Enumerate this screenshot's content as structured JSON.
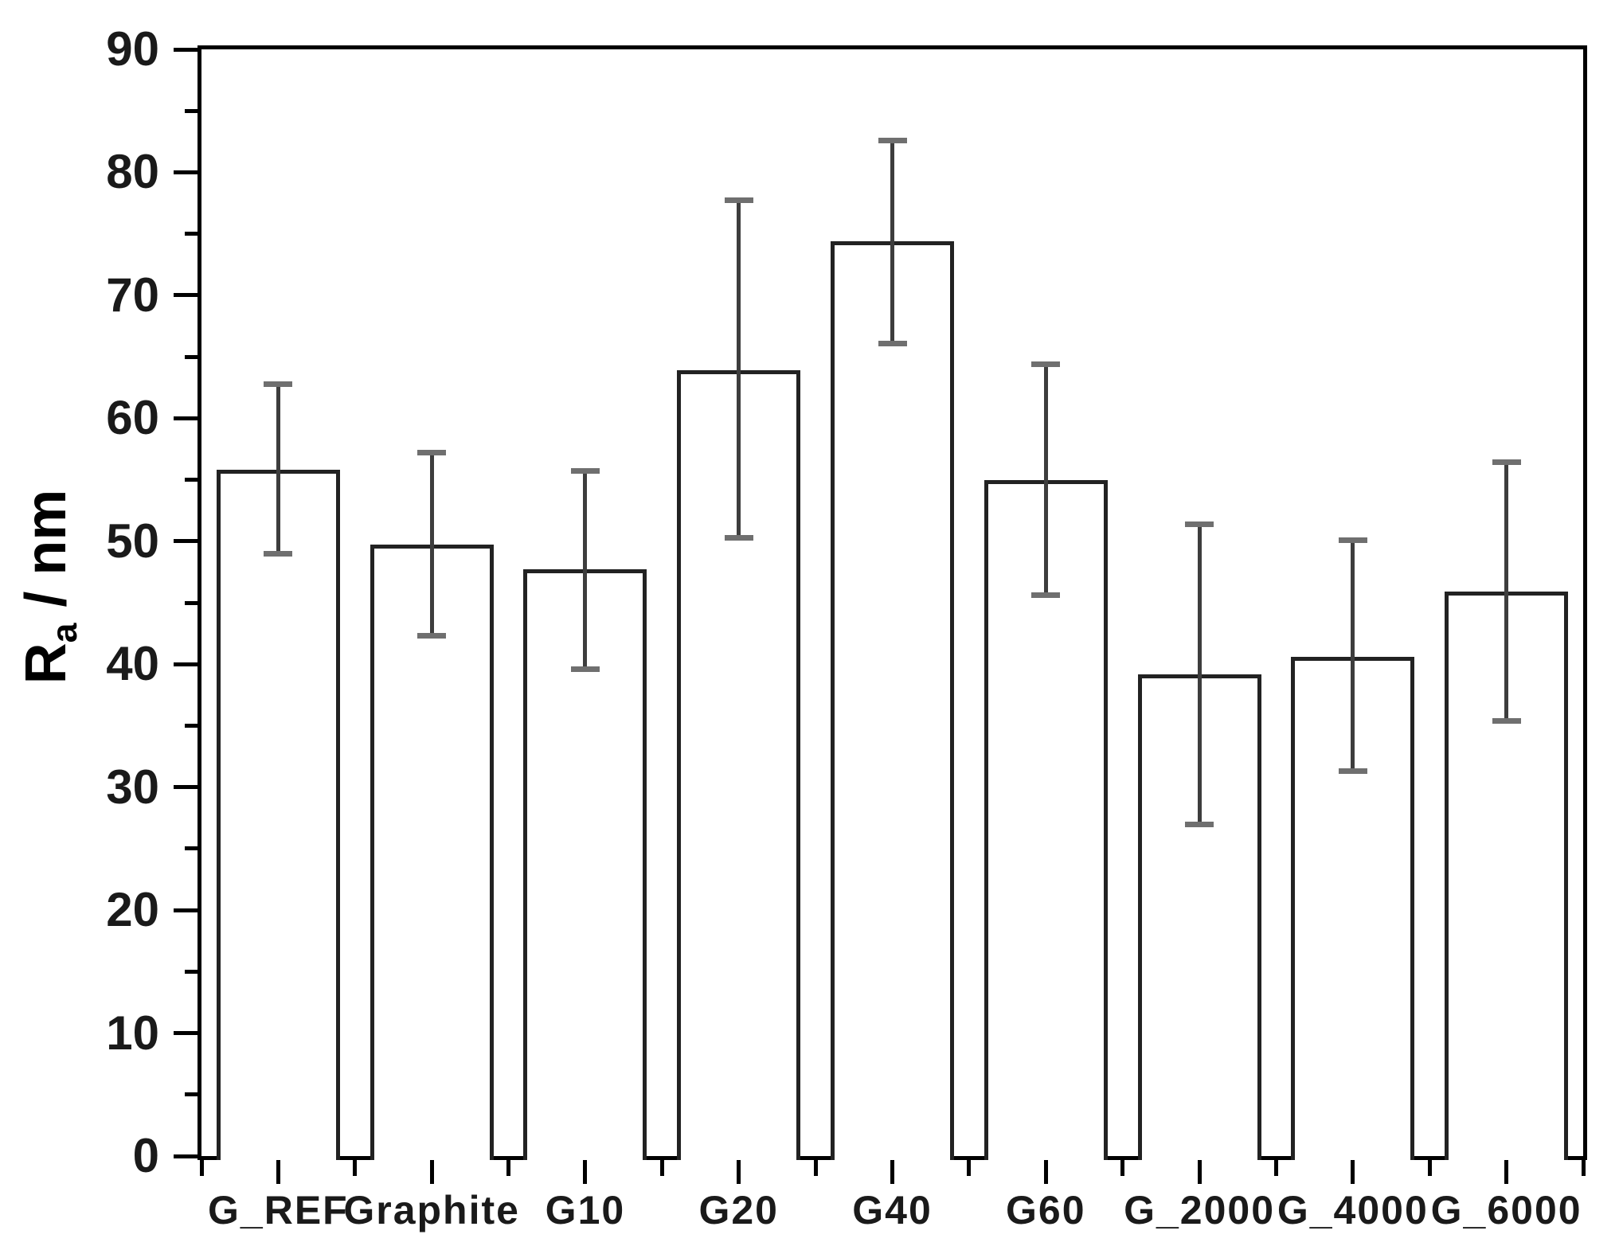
{
  "chart_data": {
    "type": "bar",
    "title": "",
    "ylabel": "Ra / nm",
    "ylabel_base": "R",
    "ylabel_sub": "a",
    "ylabel_rest": " / nm",
    "xlabel": "",
    "categories": [
      "G_REF",
      "Graphite",
      "G10",
      "G20",
      "G40",
      "G60",
      "G_2000",
      "G_4000",
      "G_6000"
    ],
    "values": [
      55.8,
      49.7,
      47.7,
      63.9,
      74.4,
      55.0,
      39.2,
      40.6,
      45.9
    ],
    "error_plus": [
      7.0,
      7.5,
      8.0,
      13.8,
      8.2,
      9.4,
      12.2,
      9.5,
      10.5
    ],
    "error_minus": [
      6.8,
      7.4,
      8.1,
      13.6,
      8.3,
      9.4,
      12.2,
      9.3,
      10.5
    ],
    "ylim": [
      0,
      90
    ],
    "y_major_step": 10,
    "y_minor_step": 5,
    "y_tick_labels": [
      "0",
      "10",
      "20",
      "30",
      "40",
      "50",
      "60",
      "70",
      "80",
      "90"
    ],
    "grid": false,
    "legend": null,
    "bar_fill": "#ffffff",
    "bar_stroke": "#222222",
    "error_stem_color": "#3d3d3d",
    "error_cap_color": "#6f6f6f",
    "frame_color": "#000000"
  }
}
